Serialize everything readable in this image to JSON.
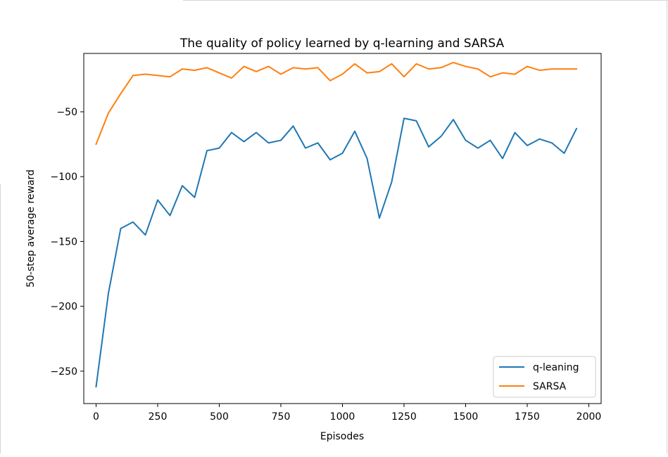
{
  "chart_data": {
    "type": "line",
    "title": "The quality of policy learned by q-learning and SARSA",
    "xlabel": "Episodes",
    "ylabel": "50-step average reward",
    "xlim": [
      -50,
      2050
    ],
    "ylim": [
      -275,
      -5
    ],
    "xticks": [
      0,
      250,
      500,
      750,
      1000,
      1250,
      1500,
      1750,
      2000
    ],
    "xtick_labels": [
      "0",
      "250",
      "500",
      "750",
      "1000",
      "1250",
      "1500",
      "1750",
      "2000"
    ],
    "yticks": [
      -250,
      -200,
      -150,
      -100,
      -50
    ],
    "ytick_labels": [
      "−250",
      "−200",
      "−150",
      "−100",
      "−50"
    ],
    "grid": false,
    "legend_position": "lower-right",
    "x": [
      0,
      50,
      100,
      150,
      200,
      250,
      300,
      350,
      400,
      450,
      500,
      550,
      600,
      650,
      700,
      750,
      800,
      850,
      900,
      950,
      1000,
      1050,
      1100,
      1150,
      1200,
      1250,
      1300,
      1350,
      1400,
      1450,
      1500,
      1550,
      1600,
      1650,
      1700,
      1750,
      1800,
      1850,
      1900,
      1950
    ],
    "series": [
      {
        "name": "q-leaning",
        "color": "#1f77b4",
        "values": [
          -262,
          -190,
          -140,
          -135,
          -145,
          -118,
          -130,
          -107,
          -116,
          -80,
          -78,
          -66,
          -73,
          -66,
          -74,
          -72,
          -61,
          -78,
          -74,
          -87,
          -82,
          -65,
          -86,
          -132,
          -104,
          -55,
          -57,
          -77,
          -69,
          -56,
          -72,
          -78,
          -72,
          -86,
          -66,
          -76,
          -71,
          -74,
          -82,
          -63
        ]
      },
      {
        "name": "SARSA",
        "color": "#ff7f0e",
        "values": [
          -75,
          -51,
          -36,
          -22,
          -21,
          -22,
          -23,
          -17,
          -18,
          -16,
          -20,
          -24,
          -15,
          -19,
          -15,
          -21,
          -16,
          -17,
          -16,
          -26,
          -21,
          -13,
          -20,
          -19,
          -13,
          -23,
          -13,
          -17,
          -16,
          -12,
          -15,
          -17,
          -23,
          -20,
          -21,
          -15,
          -18,
          -17,
          -17,
          -17
        ]
      }
    ]
  }
}
